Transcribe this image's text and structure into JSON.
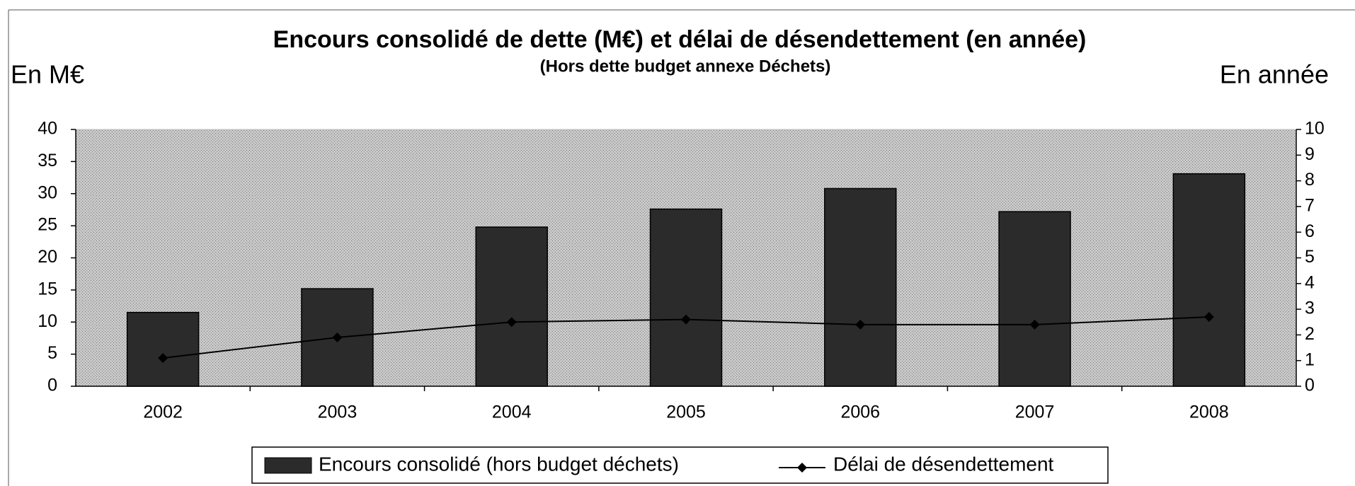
{
  "chart_data": {
    "type": "bar-line",
    "title": "Encours consolidé de dette (M€) et délai de désendettement (en année)",
    "subtitle": "(Hors dette budget annexe Déchets)",
    "y_label": "En M€",
    "y2_label": "En année",
    "categories": [
      "2002",
      "2003",
      "2004",
      "2005",
      "2006",
      "2007",
      "2008"
    ],
    "series": [
      {
        "name": "Encours consolidé (hors budget déchets)",
        "color": "#2b2b2b",
        "values": [
          11.5,
          15.2,
          24.8,
          27.6,
          30.8,
          27.2,
          33.1
        ]
      },
      {
        "name": "Délai de désendettement",
        "color": "#000000",
        "axis": "y2",
        "values": [
          1.1,
          1.9,
          2.5,
          2.6,
          2.4,
          2.4,
          2.7
        ]
      }
    ],
    "ylim": [
      0,
      40
    ],
    "yticks": [
      0,
      5,
      10,
      15,
      20,
      25,
      30,
      35,
      40
    ],
    "y2lim": [
      0,
      10
    ],
    "y2ticks": [
      0,
      1,
      2,
      3,
      4,
      5,
      6,
      7,
      8,
      9,
      10
    ],
    "plot_background": "#bdbdbd",
    "legend": "bottom"
  }
}
